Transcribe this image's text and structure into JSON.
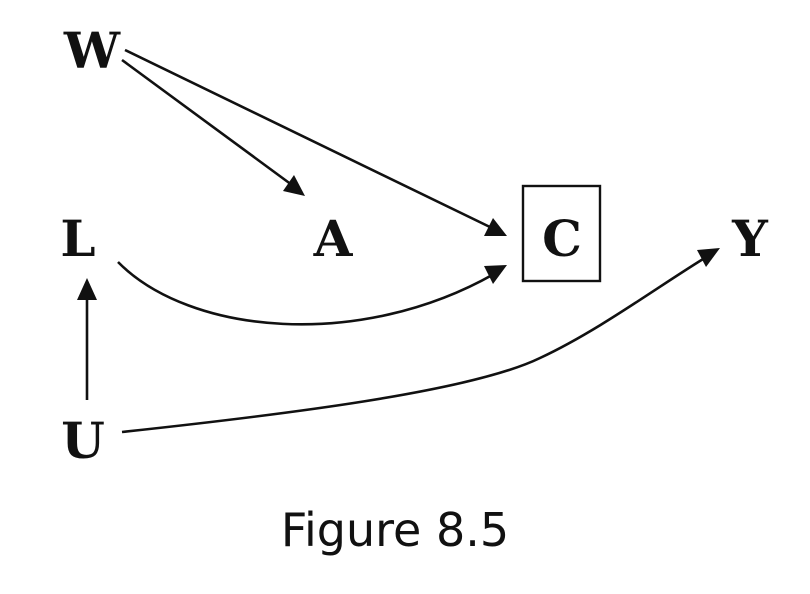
{
  "nodes": {
    "W": "W",
    "L": "L",
    "A": "A",
    "C": "C",
    "Y": "Y",
    "U": "U"
  },
  "edges": [
    {
      "from": "W",
      "to": "A"
    },
    {
      "from": "W",
      "to": "C"
    },
    {
      "from": "L",
      "to": "C"
    },
    {
      "from": "U",
      "to": "L"
    },
    {
      "from": "U",
      "to": "Y"
    }
  ],
  "boxed_nodes": [
    "C"
  ],
  "caption": "Figure 8.5"
}
